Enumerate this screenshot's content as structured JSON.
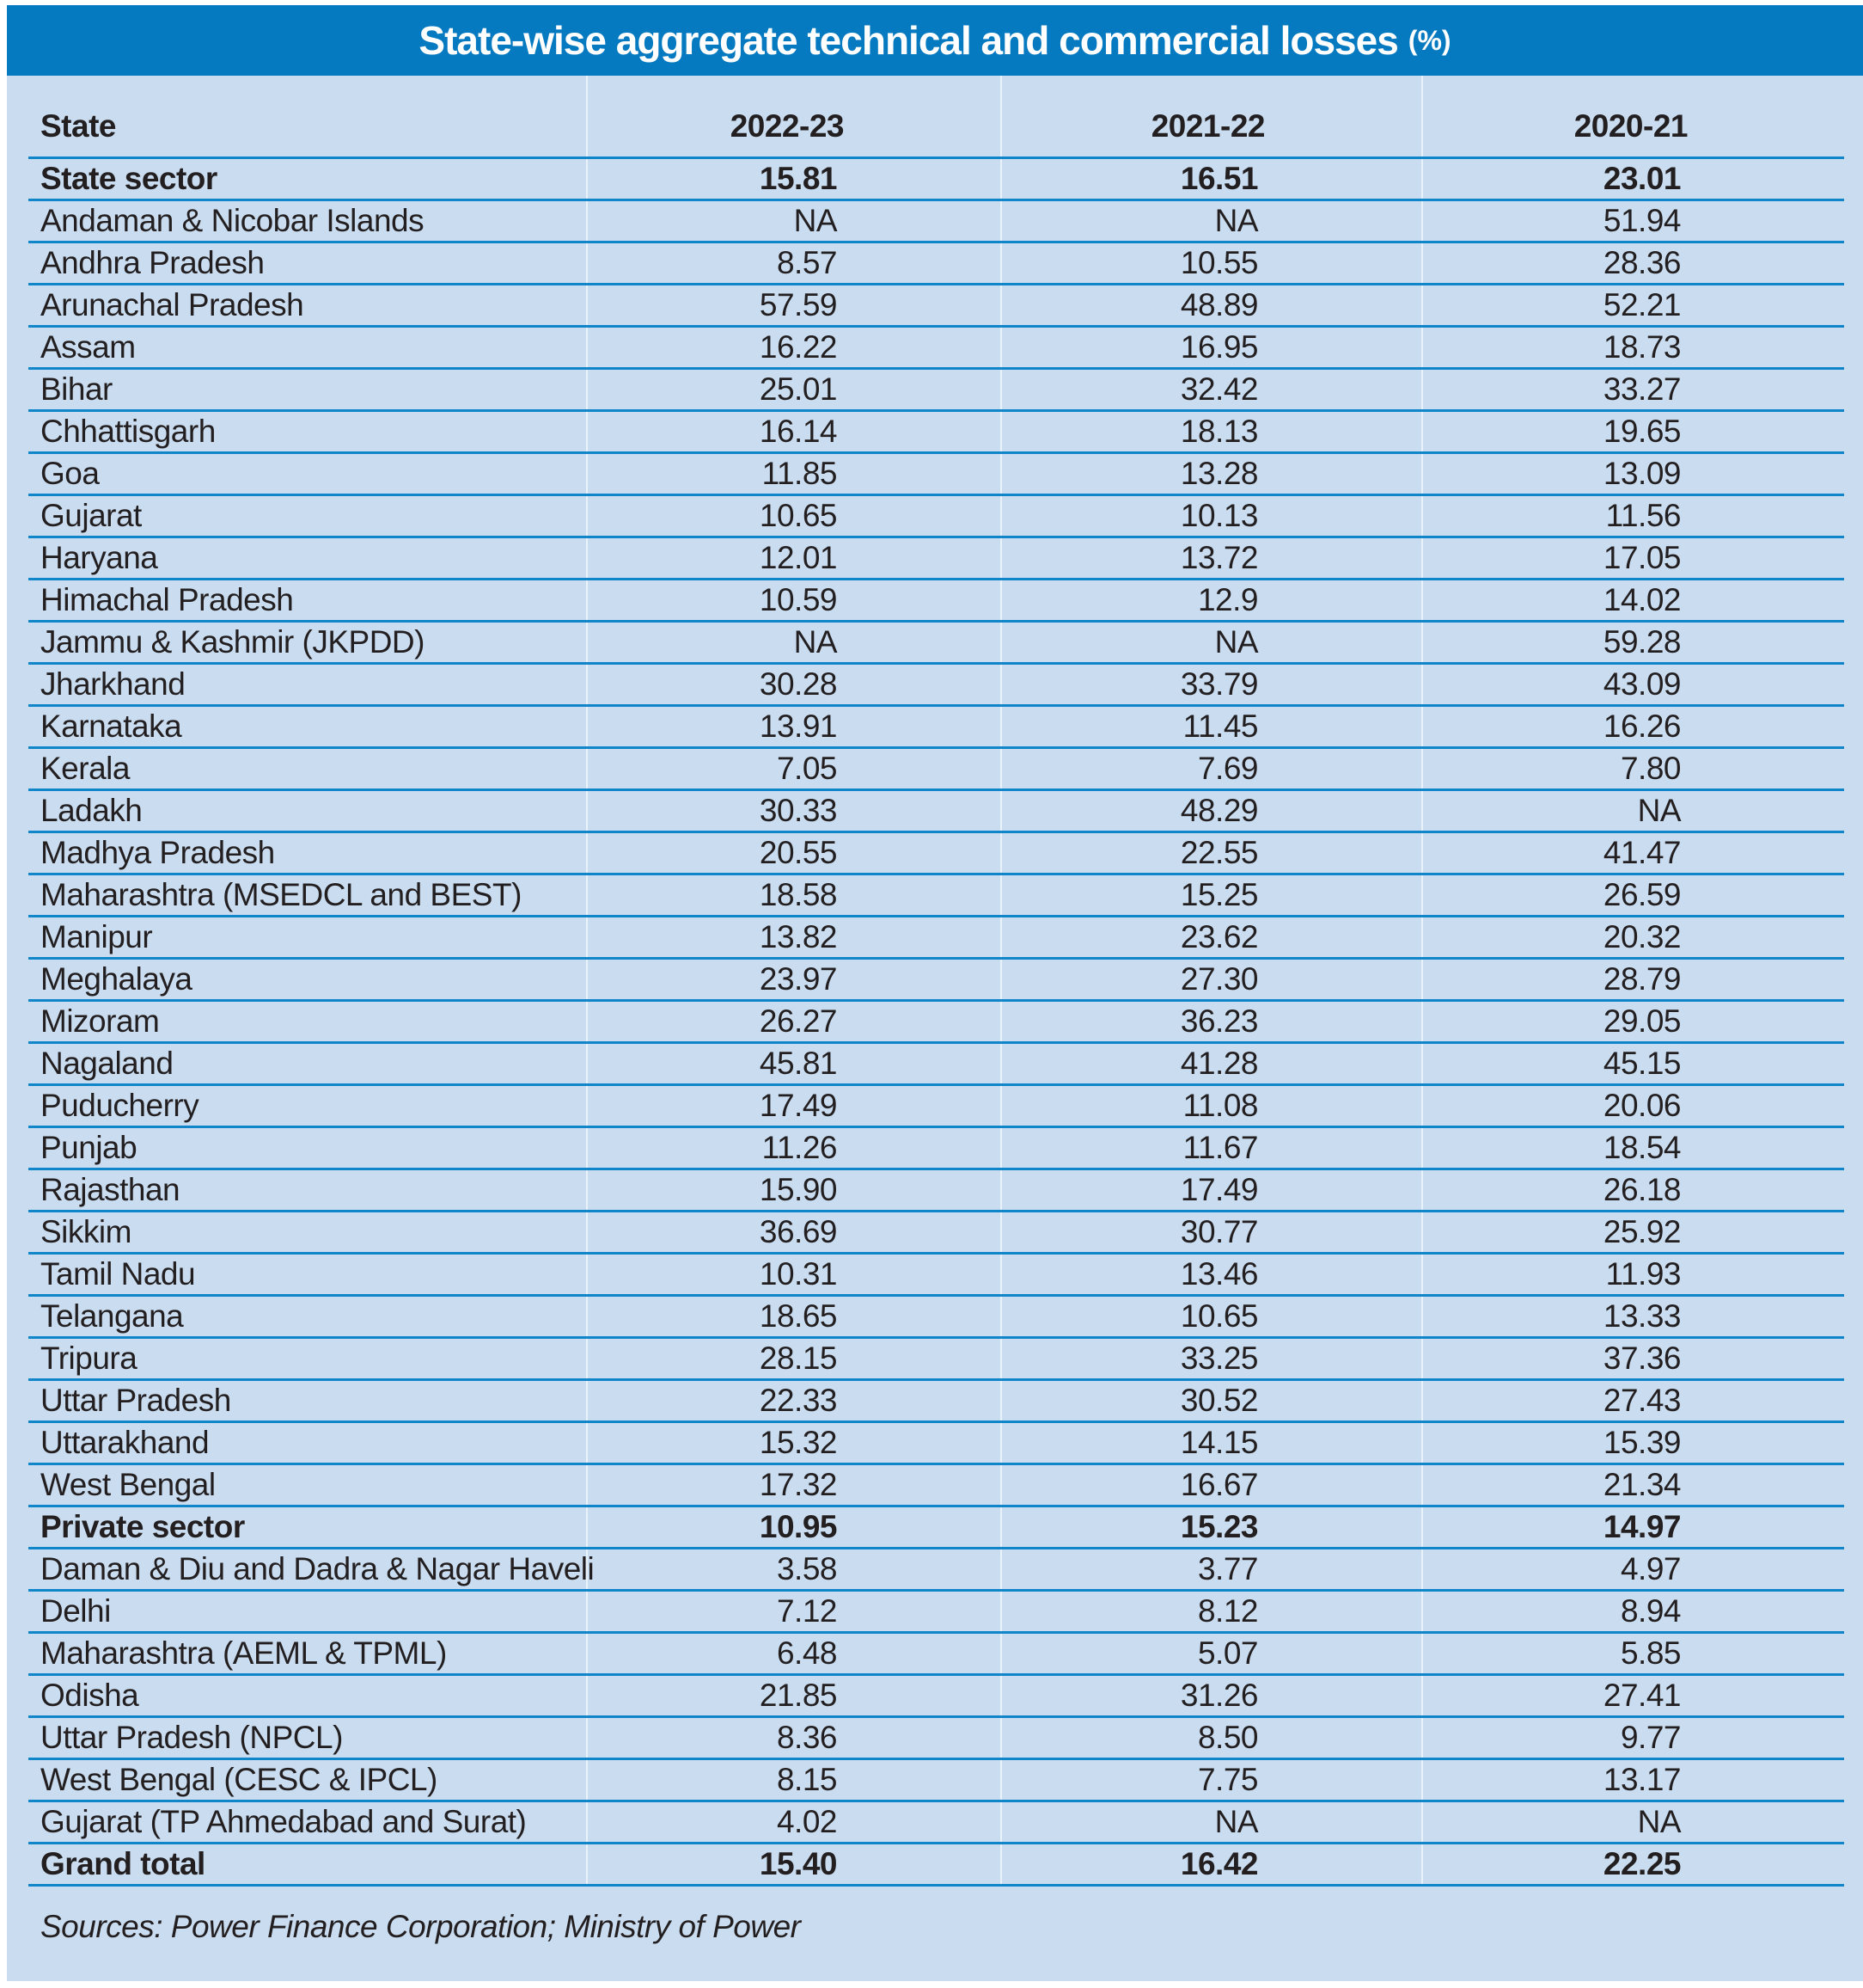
{
  "title": {
    "main": "State-wise aggregate technical and commercial losses",
    "unit": "(%)"
  },
  "colors": {
    "title_band": "#067ac1",
    "panel_background": "#c9dcf0",
    "divider_line": "#1085c9",
    "text": "#231f20"
  },
  "table": {
    "columns": [
      "State",
      "2022-23",
      "2021-22",
      "2020-21"
    ],
    "rows": [
      {
        "state": "State sector",
        "y1": "15.81",
        "y2": "16.51",
        "y3": "23.01",
        "bold": true
      },
      {
        "state": "Andaman & Nicobar Islands",
        "y1": "NA",
        "y2": "NA",
        "y3": "51.94",
        "bold": false
      },
      {
        "state": "Andhra Pradesh",
        "y1": "8.57",
        "y2": "10.55",
        "y3": "28.36",
        "bold": false
      },
      {
        "state": "Arunachal Pradesh",
        "y1": "57.59",
        "y2": "48.89",
        "y3": "52.21",
        "bold": false
      },
      {
        "state": "Assam",
        "y1": "16.22",
        "y2": "16.95",
        "y3": "18.73",
        "bold": false
      },
      {
        "state": "Bihar",
        "y1": "25.01",
        "y2": "32.42",
        "y3": "33.27",
        "bold": false
      },
      {
        "state": "Chhattisgarh",
        "y1": "16.14",
        "y2": "18.13",
        "y3": "19.65",
        "bold": false
      },
      {
        "state": "Goa",
        "y1": "11.85",
        "y2": "13.28",
        "y3": "13.09",
        "bold": false
      },
      {
        "state": "Gujarat",
        "y1": "10.65",
        "y2": "10.13",
        "y3": "11.56",
        "bold": false
      },
      {
        "state": "Haryana",
        "y1": "12.01",
        "y2": "13.72",
        "y3": "17.05",
        "bold": false
      },
      {
        "state": "Himachal Pradesh",
        "y1": "10.59",
        "y2": "12.9",
        "y3": "14.02",
        "bold": false
      },
      {
        "state": "Jammu & Kashmir (JKPDD)",
        "y1": "NA",
        "y2": "NA",
        "y3": "59.28",
        "bold": false
      },
      {
        "state": "Jharkhand",
        "y1": "30.28",
        "y2": "33.79",
        "y3": "43.09",
        "bold": false
      },
      {
        "state": "Karnataka",
        "y1": "13.91",
        "y2": "11.45",
        "y3": "16.26",
        "bold": false
      },
      {
        "state": "Kerala",
        "y1": "7.05",
        "y2": "7.69",
        "y3": "7.80",
        "bold": false
      },
      {
        "state": "Ladakh",
        "y1": "30.33",
        "y2": "48.29",
        "y3": "NA",
        "bold": false
      },
      {
        "state": "Madhya Pradesh",
        "y1": "20.55",
        "y2": "22.55",
        "y3": "41.47",
        "bold": false
      },
      {
        "state": "Maharashtra (MSEDCL and BEST)",
        "y1": "18.58",
        "y2": "15.25",
        "y3": "26.59",
        "bold": false
      },
      {
        "state": "Manipur",
        "y1": "13.82",
        "y2": "23.62",
        "y3": "20.32",
        "bold": false
      },
      {
        "state": "Meghalaya",
        "y1": "23.97",
        "y2": "27.30",
        "y3": "28.79",
        "bold": false
      },
      {
        "state": "Mizoram",
        "y1": "26.27",
        "y2": "36.23",
        "y3": "29.05",
        "bold": false
      },
      {
        "state": "Nagaland",
        "y1": "45.81",
        "y2": "41.28",
        "y3": "45.15",
        "bold": false
      },
      {
        "state": "Puducherry",
        "y1": "17.49",
        "y2": "11.08",
        "y3": "20.06",
        "bold": false
      },
      {
        "state": "Punjab",
        "y1": "11.26",
        "y2": "11.67",
        "y3": "18.54",
        "bold": false
      },
      {
        "state": "Rajasthan",
        "y1": "15.90",
        "y2": "17.49",
        "y3": "26.18",
        "bold": false
      },
      {
        "state": "Sikkim",
        "y1": "36.69",
        "y2": "30.77",
        "y3": "25.92",
        "bold": false
      },
      {
        "state": "Tamil Nadu",
        "y1": "10.31",
        "y2": "13.46",
        "y3": "11.93",
        "bold": false
      },
      {
        "state": "Telangana",
        "y1": "18.65",
        "y2": "10.65",
        "y3": "13.33",
        "bold": false
      },
      {
        "state": "Tripura",
        "y1": "28.15",
        "y2": "33.25",
        "y3": "37.36",
        "bold": false
      },
      {
        "state": "Uttar Pradesh",
        "y1": "22.33",
        "y2": "30.52",
        "y3": "27.43",
        "bold": false
      },
      {
        "state": "Uttarakhand",
        "y1": "15.32",
        "y2": "14.15",
        "y3": "15.39",
        "bold": false
      },
      {
        "state": "West Bengal",
        "y1": "17.32",
        "y2": "16.67",
        "y3": "21.34",
        "bold": false
      },
      {
        "state": "Private sector",
        "y1": "10.95",
        "y2": "15.23",
        "y3": "14.97",
        "bold": true
      },
      {
        "state": "Daman & Diu and Dadra & Nagar Haveli",
        "y1": "3.58",
        "y2": "3.77",
        "y3": "4.97",
        "bold": false
      },
      {
        "state": "Delhi",
        "y1": "7.12",
        "y2": "8.12",
        "y3": "8.94",
        "bold": false
      },
      {
        "state": "Maharashtra (AEML & TPML)",
        "y1": "6.48",
        "y2": "5.07",
        "y3": "5.85",
        "bold": false
      },
      {
        "state": "Odisha",
        "y1": "21.85",
        "y2": "31.26",
        "y3": "27.41",
        "bold": false
      },
      {
        "state": "Uttar Pradesh (NPCL)",
        "y1": "8.36",
        "y2": "8.50",
        "y3": "9.77",
        "bold": false
      },
      {
        "state": "West Bengal (CESC & IPCL)",
        "y1": "8.15",
        "y2": "7.75",
        "y3": "13.17",
        "bold": false
      },
      {
        "state": "Gujarat (TP Ahmedabad and Surat)",
        "y1": "4.02",
        "y2": "NA",
        "y3": "NA",
        "bold": false
      },
      {
        "state": "Grand total",
        "y1": "15.40",
        "y2": "16.42",
        "y3": "22.25",
        "bold": true
      }
    ]
  },
  "source_note": "Sources: Power Finance Corporation; Ministry of Power"
}
